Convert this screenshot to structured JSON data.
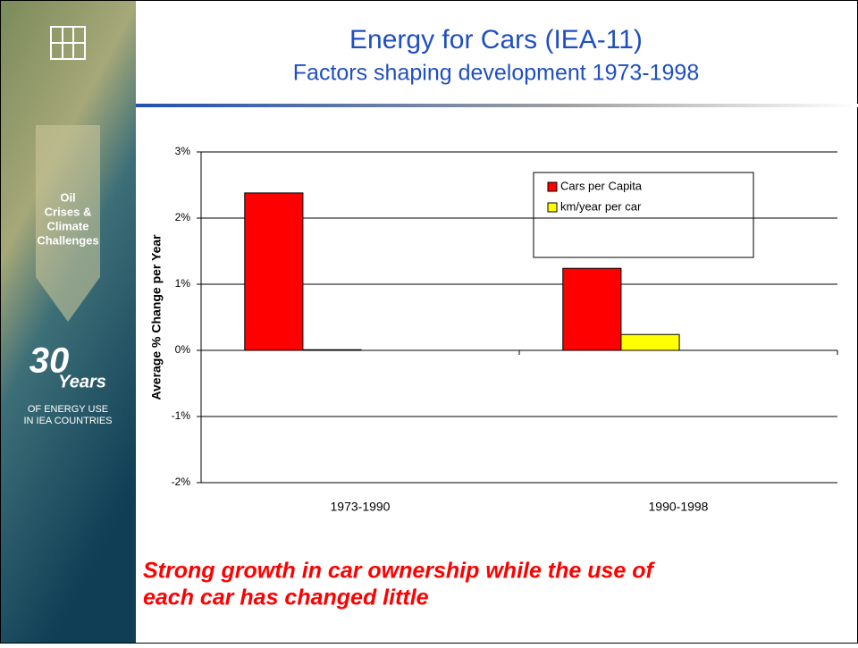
{
  "sidebar": {
    "theme": [
      "Oil",
      "Crises &",
      "Climate",
      "Challenges"
    ],
    "big": "30",
    "years": "Years",
    "caption": [
      "OF ENERGY USE",
      "IN IEA COUNTRIES"
    ]
  },
  "chart_data": {
    "type": "bar",
    "title": "Energy for Cars (IEA-11)",
    "subtitle": "Factors shaping development 1973-1998",
    "y_label": "Average % Change per Year",
    "annotation": [
      "Strong growth in car ownership while the use of",
      "each car has changed little"
    ],
    "categories": [
      "1973-1990",
      "1990-1998"
    ],
    "series": [
      {
        "name": "Cars per Capita",
        "color": "#ff0000",
        "values": [
          2.38,
          1.24
        ]
      },
      {
        "name": "km/year per car",
        "color": "#ffff00",
        "values": [
          0.01,
          0.24
        ]
      }
    ],
    "ylim": [
      -2,
      3
    ],
    "yticks": [
      {
        "value": -2,
        "label": "-2%"
      },
      {
        "value": -1,
        "label": "-1%"
      },
      {
        "value": 0,
        "label": "0%"
      },
      {
        "value": 1,
        "label": "1%"
      },
      {
        "value": 2,
        "label": "2%"
      },
      {
        "value": 3,
        "label": "3%"
      }
    ],
    "grid": true,
    "legend": "upper right"
  }
}
